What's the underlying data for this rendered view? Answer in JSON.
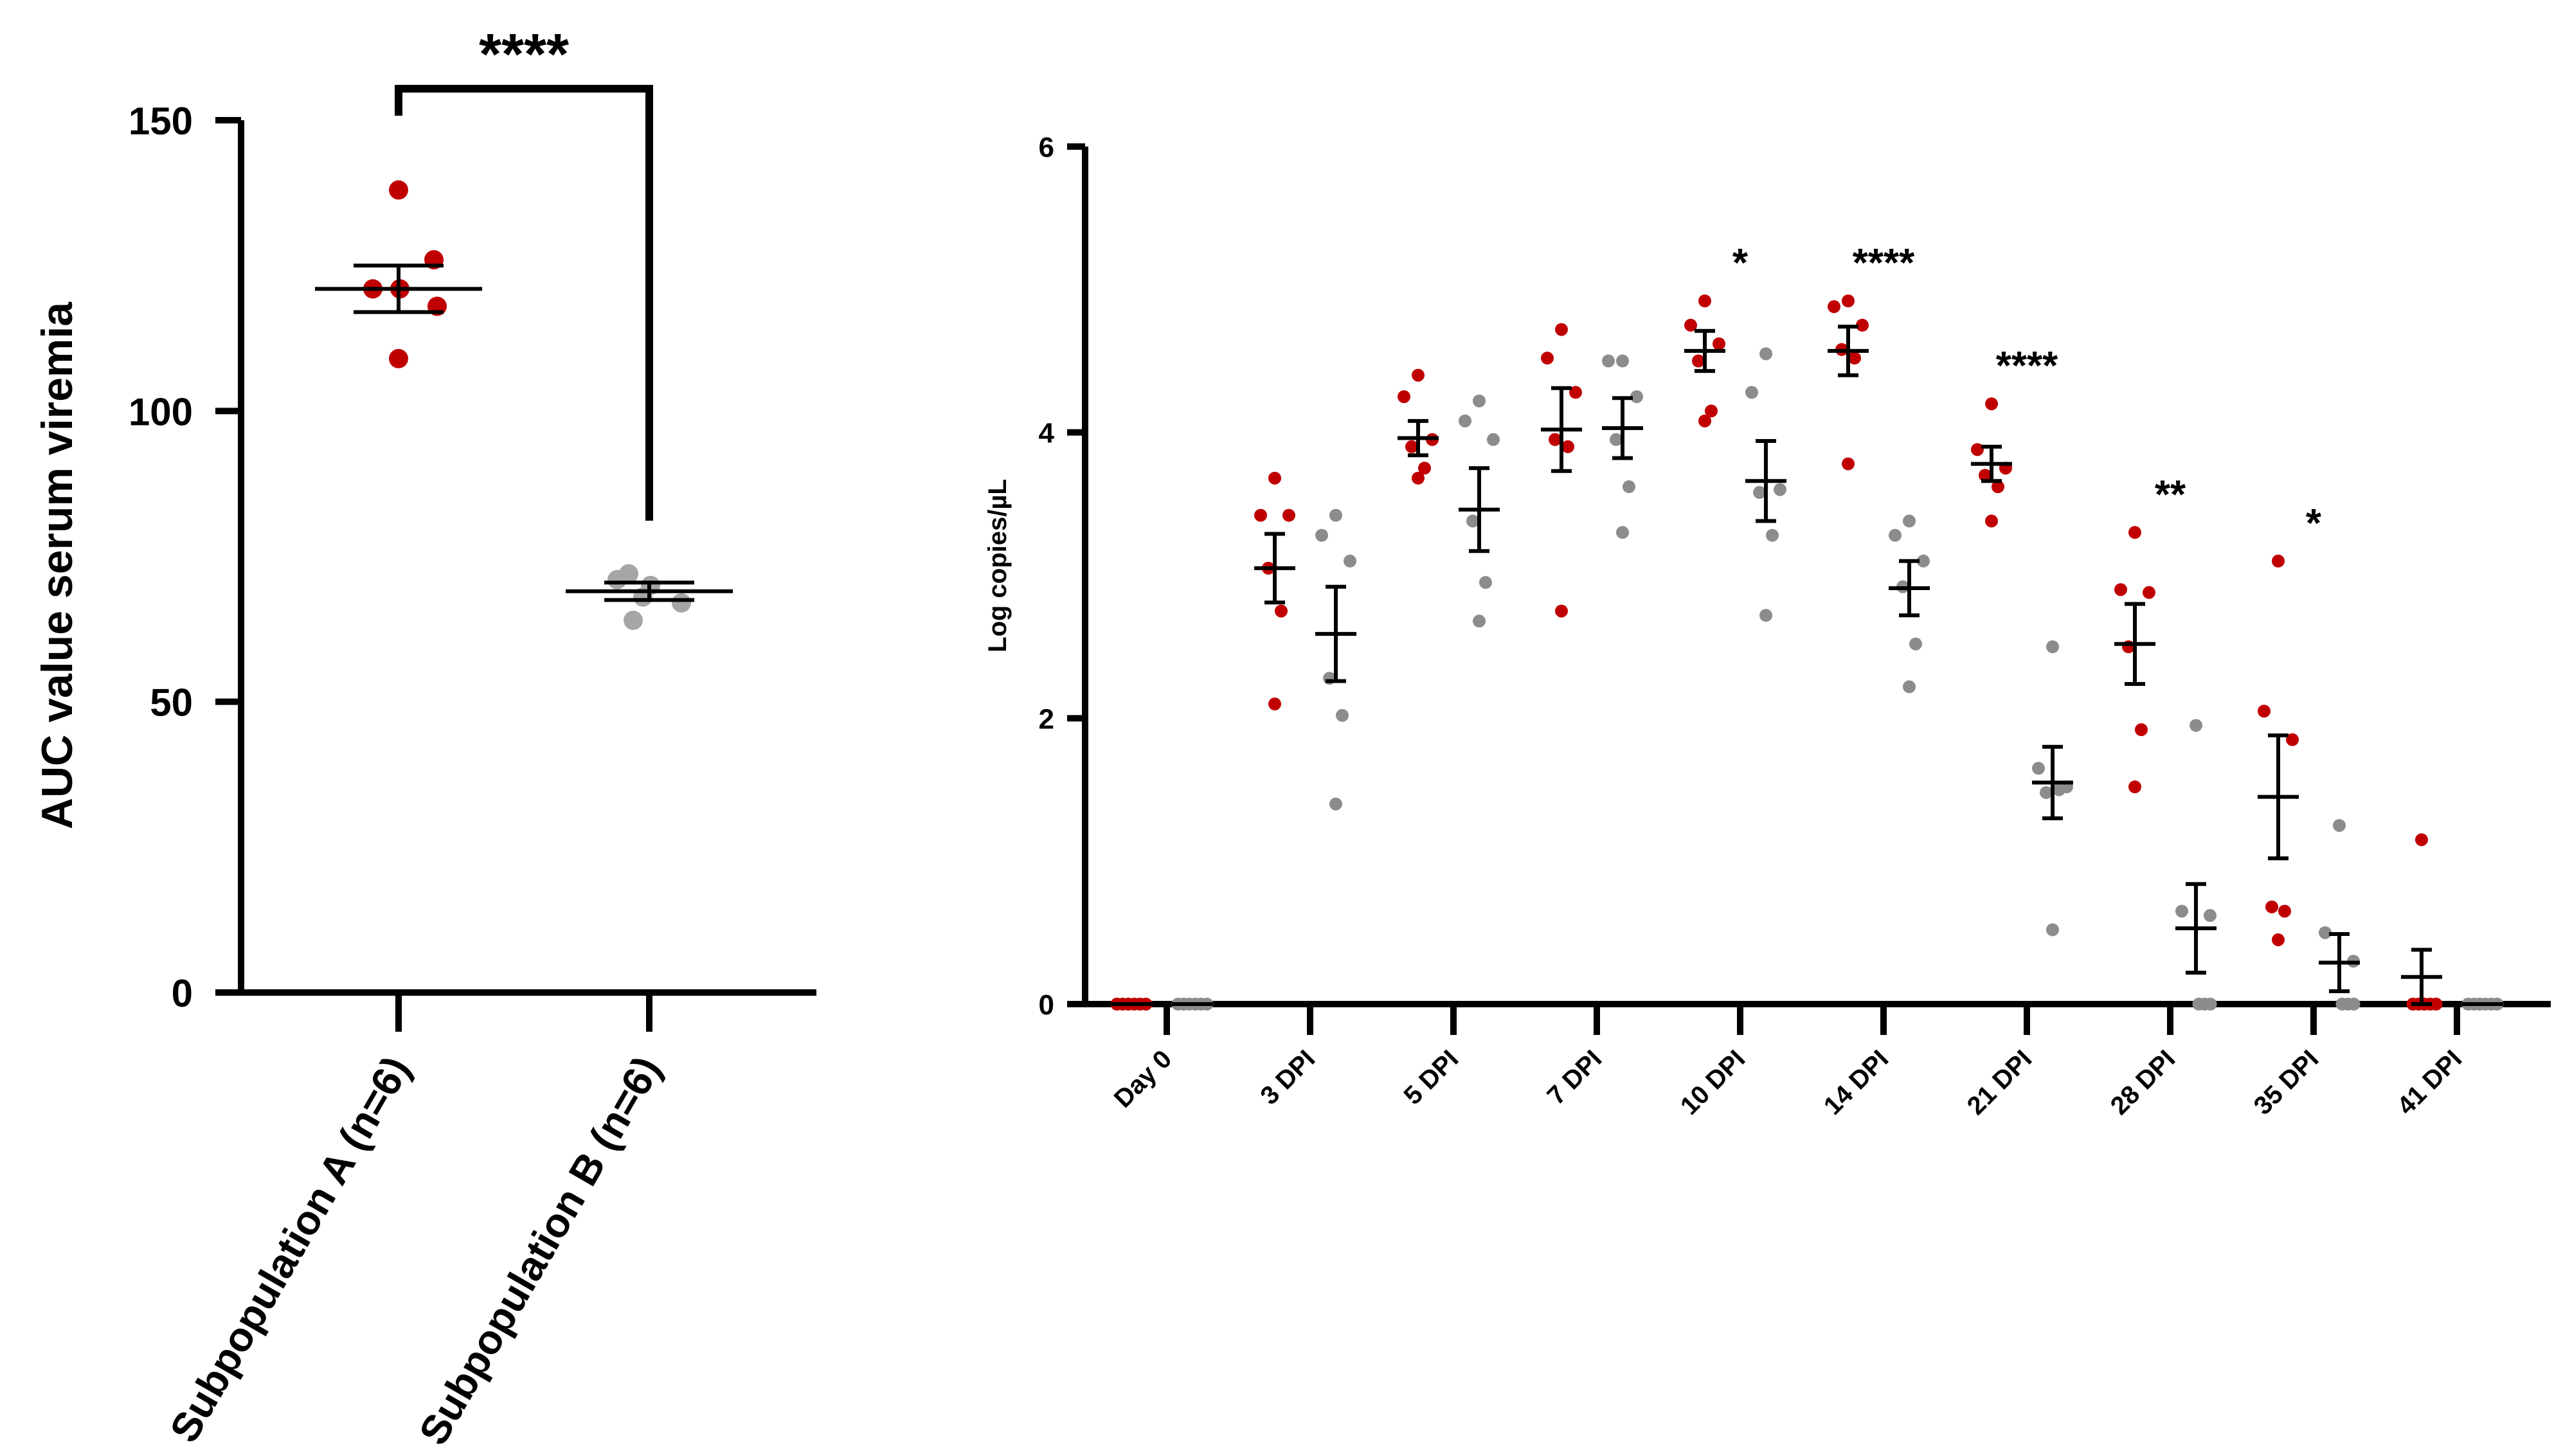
{
  "colors": {
    "group_a": "#C00000",
    "group_b": "#8C8C8C",
    "group_b_light": "#A6A6A6",
    "axis": "#000000"
  },
  "chart_data": [
    {
      "type": "scatter",
      "title": "",
      "ylabel": "AUC value serum viremia",
      "xlabel": "",
      "ylim": [
        0,
        150
      ],
      "yticks": [
        "0",
        "50",
        "100",
        "150"
      ],
      "categories": [
        "Subpopulation A (n=6)",
        "Subpopulation B (n=6)"
      ],
      "series": [
        {
          "name": "Subpopulation A (n=6)",
          "color": "#C00000",
          "points": [
            138,
            126,
            121,
            121,
            118,
            109
          ],
          "mean": 121,
          "sem_low": 117,
          "sem_high": 125
        },
        {
          "name": "Subpopulation B (n=6)",
          "color": "#A6A6A6",
          "points": [
            72,
            71,
            70,
            68,
            67,
            64
          ],
          "mean": 69,
          "sem_low": 67.5,
          "sem_high": 70.5
        }
      ],
      "significance": {
        "label": "****",
        "between": [
          0,
          1
        ]
      }
    },
    {
      "type": "scatter",
      "title": "",
      "ylabel": "Log copies/µL",
      "xlabel": "",
      "ylim": [
        0,
        6
      ],
      "yticks": [
        "0",
        "2",
        "4",
        "6"
      ],
      "categories": [
        "Day 0",
        "3 DPI",
        "5 DPI",
        "7 DPI",
        "10 DPI",
        "14 DPI",
        "21 DPI",
        "28 DPI",
        "35 DPI",
        "41 DPI"
      ],
      "series": [
        {
          "name": "Subpopulation A",
          "color": "#C00000",
          "points": [
            [
              0,
              0,
              0,
              0,
              0,
              0
            ],
            [
              3.68,
              3.42,
              3.42,
              3.05,
              2.75,
              2.1
            ],
            [
              4.4,
              4.25,
              3.95,
              3.9,
              3.75,
              3.68
            ],
            [
              4.72,
              4.52,
              4.28,
              3.95,
              3.9,
              2.75
            ],
            [
              4.92,
              4.75,
              4.62,
              4.5,
              4.15,
              4.08
            ],
            [
              4.92,
              4.88,
              4.75,
              4.58,
              4.52,
              3.78
            ],
            [
              4.2,
              3.88,
              3.75,
              3.7,
              3.62,
              3.38
            ],
            [
              3.3,
              2.9,
              2.88,
              2.5,
              1.92,
              1.52
            ],
            [
              3.1,
              2.05,
              1.85,
              0.68,
              0.65,
              0.45
            ],
            [
              1.15,
              0,
              0,
              0,
              0,
              0
            ]
          ],
          "mean": [
            0,
            3.05,
            3.96,
            4.02,
            4.57,
            4.57,
            3.78,
            2.52,
            1.45,
            0.19
          ],
          "sem": [
            0,
            0.24,
            0.12,
            0.29,
            0.14,
            0.17,
            0.12,
            0.28,
            0.43,
            0.19
          ],
          "labels": [
            "",
            "",
            "",
            "",
            "*",
            "****",
            "****",
            "**",
            "*",
            ""
          ]
        },
        {
          "name": "Subpopulation B",
          "color": "#8C8C8C",
          "points": [
            [
              0,
              0,
              0,
              0,
              0,
              0
            ],
            [
              3.42,
              3.28,
              3.1,
              2.28,
              2.02,
              1.4
            ],
            [
              4.22,
              4.08,
              3.95,
              3.38,
              2.95,
              2.68
            ],
            [
              4.5,
              4.5,
              4.25,
              3.95,
              3.62,
              3.3
            ],
            [
              4.55,
              4.28,
              3.6,
              3.58,
              3.28,
              2.72
            ],
            [
              3.38,
              3.28,
              3.1,
              2.92,
              2.52,
              2.22
            ],
            [
              2.5,
              1.65,
              1.52,
              1.48,
              1.5,
              0.52
            ],
            [
              1.95,
              0.65,
              0.62,
              0,
              0,
              0
            ],
            [
              1.25,
              0.5,
              0.3,
              0,
              0,
              0
            ],
            [
              0,
              0,
              0,
              0,
              0,
              0
            ]
          ],
          "mean": [
            0,
            2.59,
            3.46,
            4.03,
            3.66,
            2.91,
            1.55,
            0.53,
            0.29,
            0
          ],
          "sem": [
            0,
            0.33,
            0.29,
            0.21,
            0.28,
            0.19,
            0.25,
            0.31,
            0.2,
            0
          ]
        }
      ]
    }
  ]
}
